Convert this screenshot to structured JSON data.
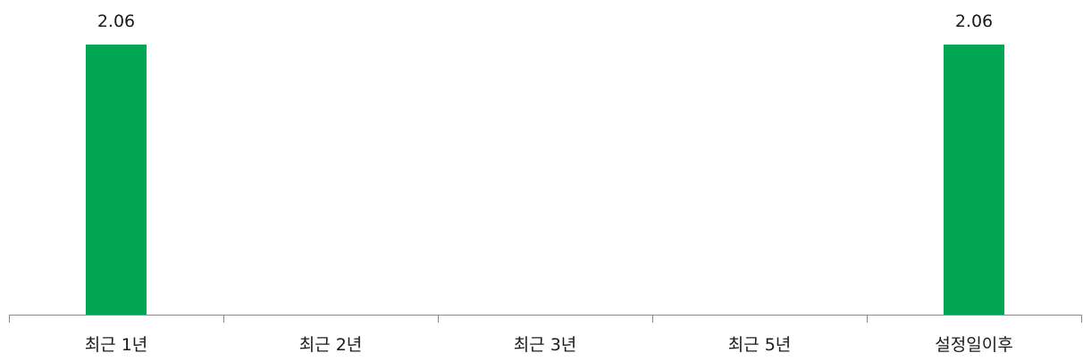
{
  "chart_data": {
    "type": "bar",
    "categories": [
      "최근 1년",
      "최근 2년",
      "최근 3년",
      "최근 5년",
      "설정일이후"
    ],
    "values": [
      2.06,
      null,
      null,
      null,
      2.06
    ],
    "data_labels": [
      "2.06",
      "",
      "",
      "",
      "2.06"
    ],
    "title": "",
    "xlabel": "",
    "ylabel": "",
    "ylim": [
      0,
      2.06
    ],
    "grid": false,
    "legend": "none",
    "colors": {
      "bar": "#00a651",
      "axis": "#8c8c8c",
      "text": "#1a1a1a"
    }
  }
}
